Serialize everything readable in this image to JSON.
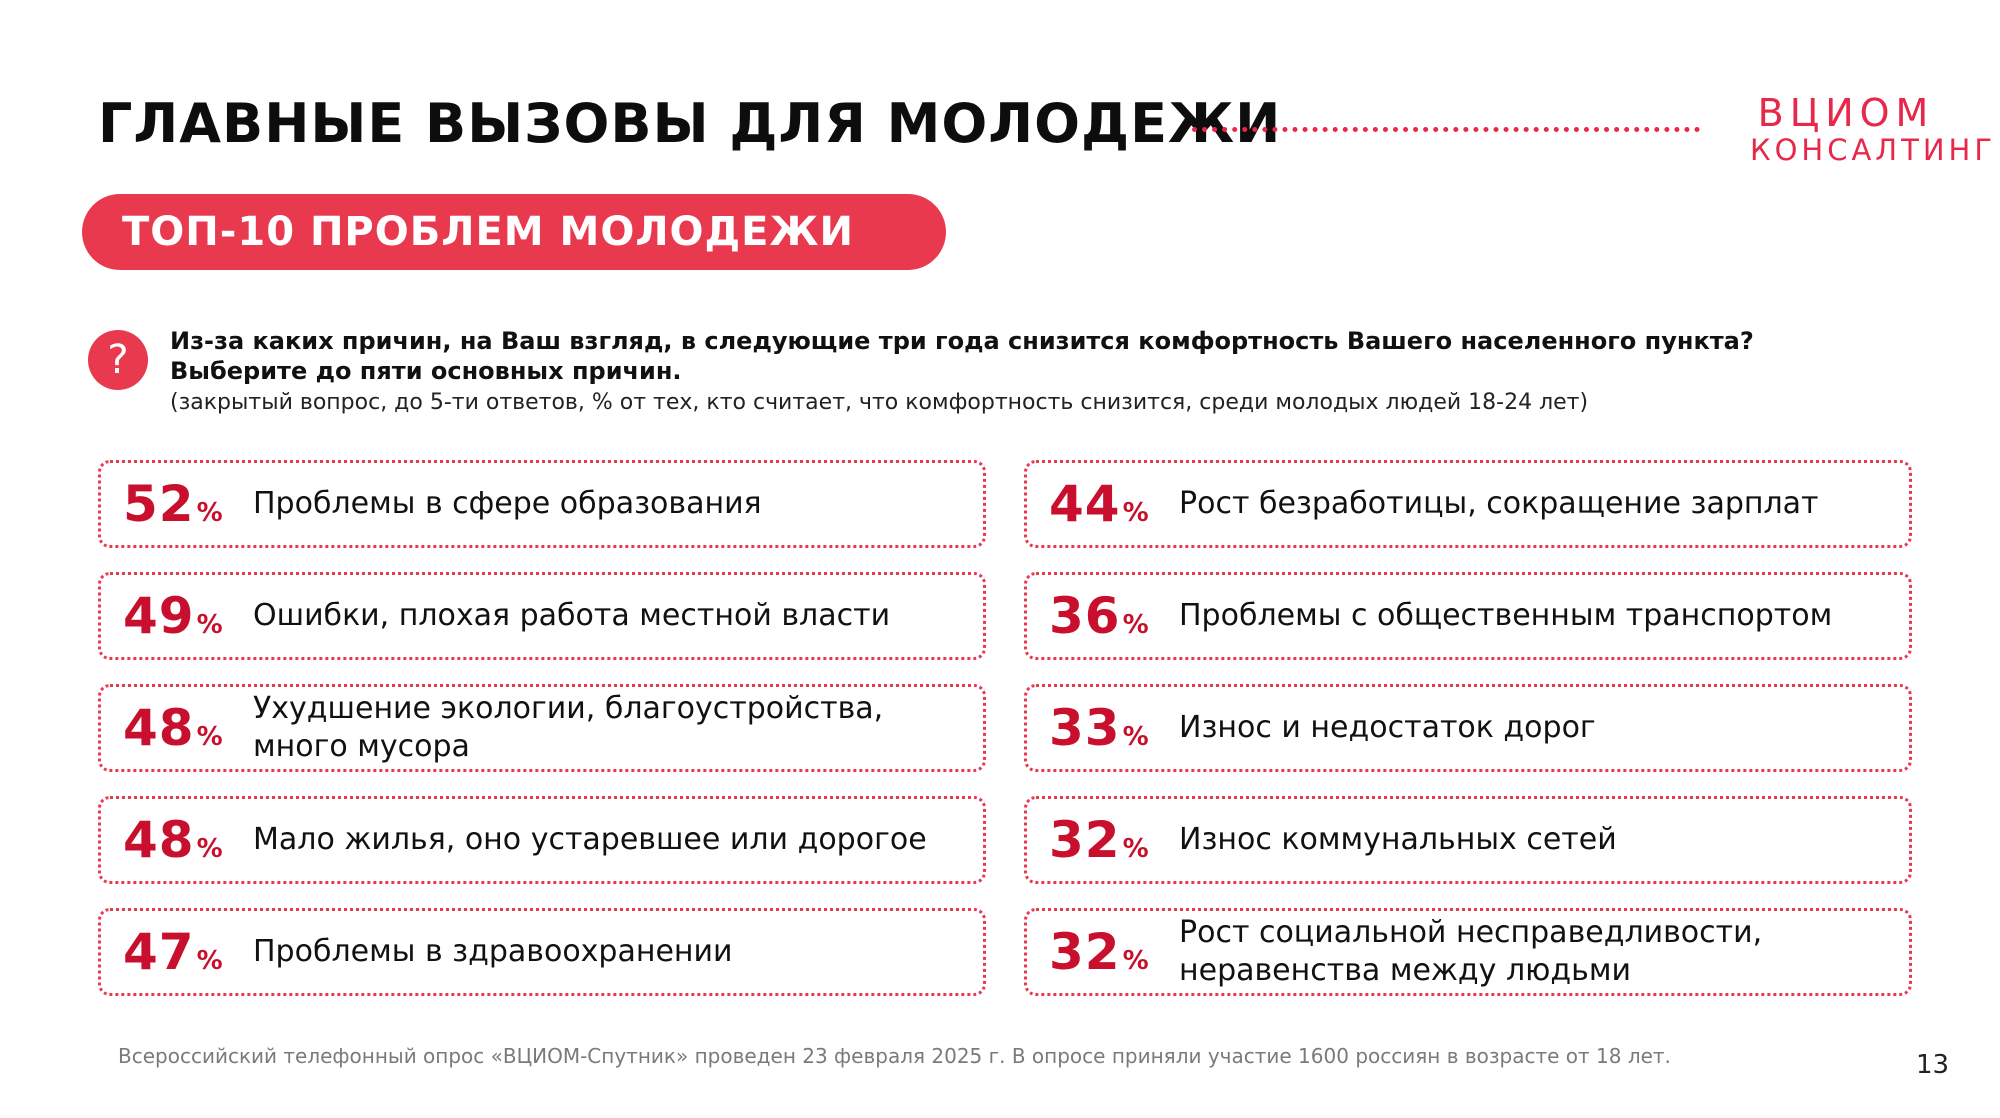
{
  "header": {
    "title": "ГЛАВНЫЕ ВЫЗОВЫ ДЛЯ МОЛОДЕЖИ",
    "logo_top": "ВЦИОМ",
    "logo_bottom": "КОНСАЛТИНГ"
  },
  "section": {
    "pill_label": "ТОП-10 ПРОБЛЕМ МОЛОДЕЖИ"
  },
  "question": {
    "icon": "question-icon",
    "line1": "Из-за каких причин, на Ваш взгляд, в следующие три года снизится комфортность Вашего населенного пункта?",
    "line2": "Выберите до пяти основных причин.",
    "note": "(закрытый вопрос, до 5-ти ответов, % от тех, кто считает, что комфортность снизится, среди молодых людей 18-24 лет)"
  },
  "percent_symbol": "%",
  "left_items": [
    {
      "value": "52",
      "label": "Проблемы в сфере образования"
    },
    {
      "value": "49",
      "label": "Ошибки, плохая работа местной власти"
    },
    {
      "value": "48",
      "label": "Ухудшение экологии, благоустройства, много мусора"
    },
    {
      "value": "48",
      "label": "Мало жилья, оно устаревшее или дорогое"
    },
    {
      "value": "47",
      "label": "Проблемы в здравоохранении"
    }
  ],
  "right_items": [
    {
      "value": "44",
      "label": "Рост безработицы, сокращение зарплат"
    },
    {
      "value": "36",
      "label": "Проблемы с общественным транспортом"
    },
    {
      "value": "33",
      "label": "Износ и недостаток дорог"
    },
    {
      "value": "32",
      "label": "Износ коммунальных сетей"
    },
    {
      "value": "32",
      "label": "Рост социальной несправедливости, неравенства между людьми"
    }
  ],
  "footer": {
    "note": "Всероссийский телефонный опрос «ВЦИОМ-Спутник» проведен 23 февраля 2025 г. В опросе приняли участие 1600 россиян в возрасте от 18 лет.",
    "page_number": "13"
  },
  "colors": {
    "accent": "#e8394f",
    "percent": "#c8102e"
  }
}
